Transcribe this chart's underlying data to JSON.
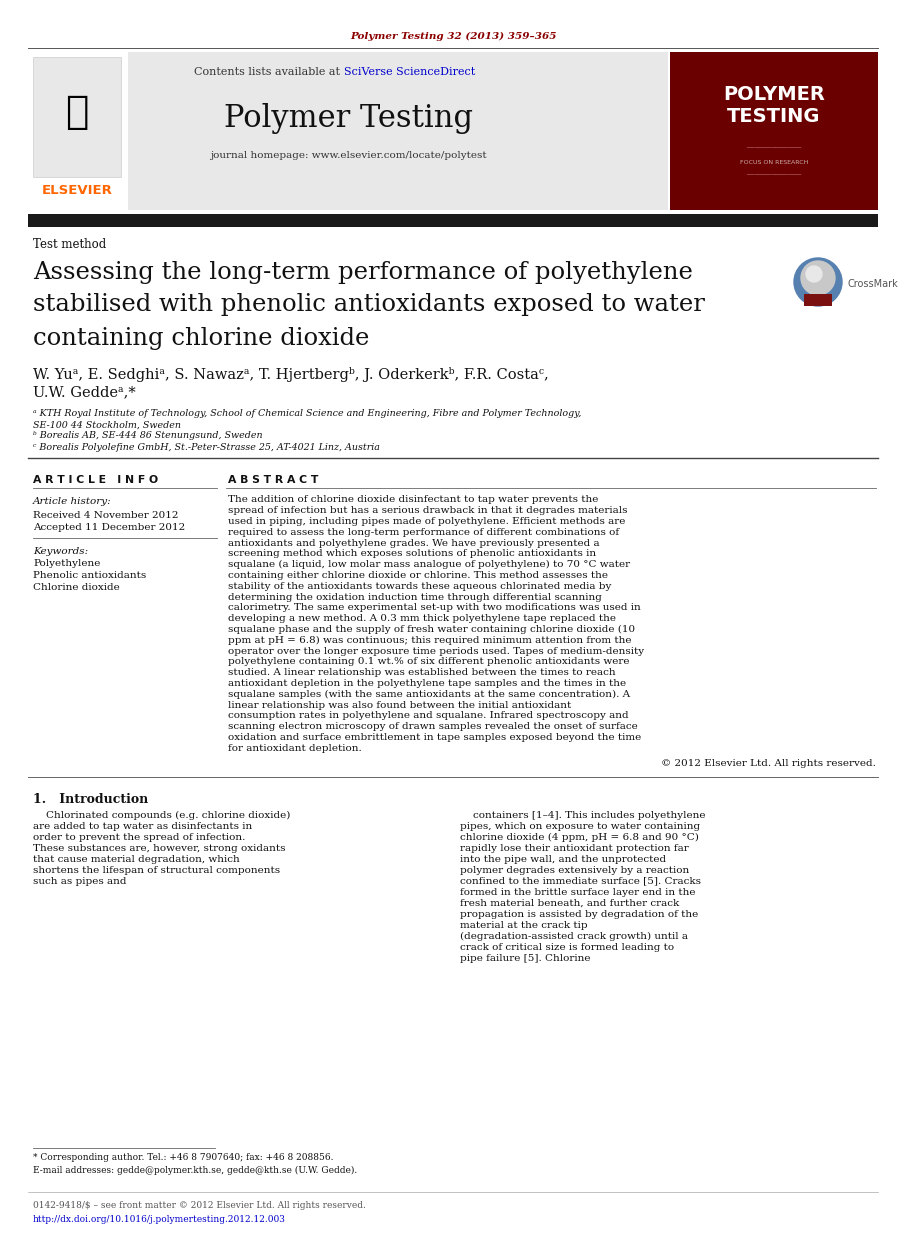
{
  "journal_ref": "Polymer Testing 32 (2013) 359–365",
  "journal_ref_color": "#8B0000",
  "contents_text": "Contents lists available at ",
  "sciverse_text": "SciVerse ScienceDirect",
  "sciverse_color": "#0000CC",
  "journal_title": "Polymer Testing",
  "homepage_text": "journal homepage: www.elsevier.com/locate/polytest",
  "header_bg": "#E8E8E8",
  "sidebar_bg": "#6B0000",
  "sidebar_text_line1": "POLYMER",
  "sidebar_text_line2": "TESTING",
  "section_label": "Test method",
  "paper_title_line1": "Assessing the long-term performance of polyethylene",
  "paper_title_line2": "stabilised with phenolic antioxidants exposed to water",
  "paper_title_line3": "containing chlorine dioxide",
  "authors_line1": "W. Yuᵃ, E. Sedghiᵃ, S. Nawazᵃ, T. Hjertbergᵇ, J. Oderkerkᵇ, F.R. Costaᶜ,",
  "authors_line2": "U.W. Geddeᵃ,*",
  "affil_a1": "ᵃ KTH Royal Institute of Technology, School of Chemical Science and Engineering, Fibre and Polymer Technology,",
  "affil_a2": "SE-100 44 Stockholm, Sweden",
  "affil_b": "ᵇ Borealis AB, SE-444 86 Stenungsund, Sweden",
  "affil_c": "ᶜ Borealis Polyolefine GmbH, St.-Peter-Strasse 25, AT-4021 Linz, Austria",
  "article_info_header": "A R T I C L E   I N F O",
  "abstract_header": "A B S T R A C T",
  "article_history_label": "Article history:",
  "received_text": "Received 4 November 2012",
  "accepted_text": "Accepted 11 December 2012",
  "keywords_label": "Keywords:",
  "keywords": [
    "Polyethylene",
    "Phenolic antioxidants",
    "Chlorine dioxide"
  ],
  "abstract_text": "The addition of chlorine dioxide disinfectant to tap water prevents the spread of infection but has a serious drawback in that it degrades materials used in piping, including pipes made of polyethylene. Efficient methods are required to assess the long-term performance of different combinations of antioxidants and polyethylene grades. We have previously presented a screening method which exposes solutions of phenolic antioxidants in squalane (a liquid, low molar mass analogue of polyethylene) to 70 °C water containing either chlorine dioxide or chlorine. This method assesses the stability of the antioxidants towards these aqueous chlorinated media by determining the oxidation induction time through differential scanning calorimetry. The same experimental set-up with two modifications was used in developing a new method. A 0.3 mm thick polyethylene tape replaced the squalane phase and the supply of fresh water containing chlorine dioxide (10 ppm at pH = 6.8) was continuous; this required minimum attention from the operator over the longer exposure time periods used. Tapes of medium-density polyethylene containing 0.1 wt.% of six different phenolic antioxidants were studied. A linear relationship was established between the times to reach antioxidant depletion in the polyethylene tape samples and the times in the squalane samples (with the same antioxidants at the same concentration). A linear relationship was also found between the initial antioxidant consumption rates in polyethylene and squalane. Infrared spectroscopy and scanning electron microscopy of drawn samples revealed the onset of surface oxidation and surface embrittlement in tape samples exposed beyond the time for antioxidant depletion.",
  "copyright_text": "© 2012 Elsevier Ltd. All rights reserved.",
  "intro_header": "1.   Introduction",
  "intro_col1": "Chlorinated compounds (e.g. chlorine dioxide) are added to tap water as disinfectants in order to prevent the spread of infection. These substances are, however, strong oxidants that cause material degradation, which shortens the lifespan of structural components such as pipes and",
  "intro_col2": "containers [1–4]. This includes polyethylene pipes, which on exposure to water containing chlorine dioxide (4 ppm, pH = 6.8 and 90 °C) rapidly lose their antioxidant protection far into the pipe wall, and the unprotected polymer degrades extensively by a reaction confined to the immediate surface [5]. Cracks formed in the brittle surface layer end in the fresh material beneath, and further crack propagation is assisted by degradation of the material at the crack tip (degradation-assisted crack growth) until a crack of critical size is formed leading to pipe failure [5]. Chlorine",
  "footnote_star": "* Corresponding author. Tel.: +46 8 7907640; fax: +46 8 208856.",
  "footnote_email": "E-mail addresses: gedde@polymer.kth.se, gedde@kth.se (U.W. Gedde).",
  "footer_left": "0142-9418/$ – see front matter © 2012 Elsevier Ltd. All rights reserved.",
  "footer_doi": "http://dx.doi.org/10.1016/j.polymertesting.2012.12.003",
  "elsevier_color": "#FF6600",
  "top_bar_color": "#1a1a1a",
  "separator_color": "#000000"
}
